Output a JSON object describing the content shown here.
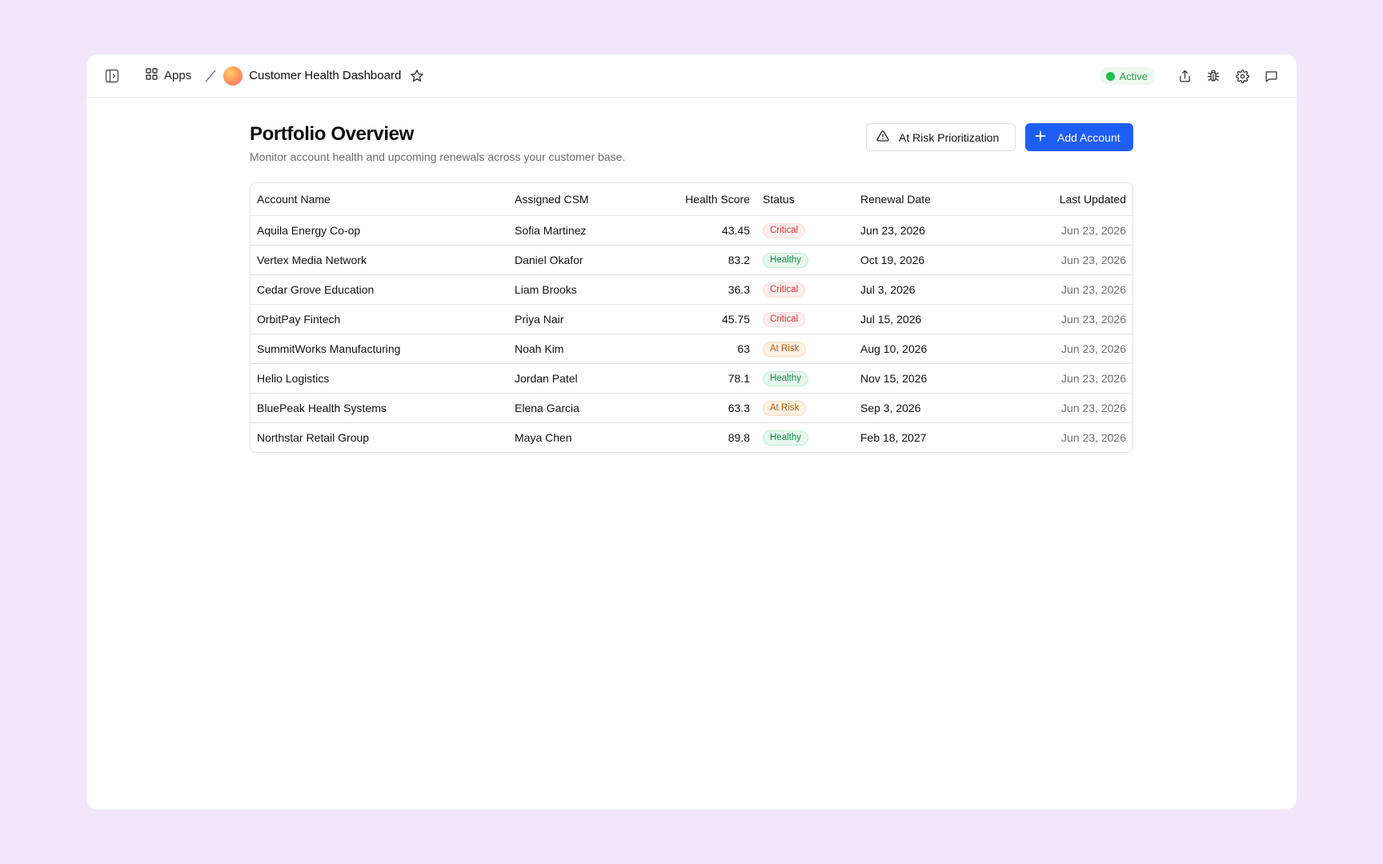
{
  "topbar": {
    "apps_label": "Apps",
    "app_title": "Customer Health Dashboard",
    "status_label": "Active",
    "status_color": "#1fbf4d",
    "icons": [
      "sidebar-toggle-icon",
      "apps-grid-icon",
      "star-icon",
      "share-icon",
      "bug-icon",
      "gear-icon",
      "chat-icon"
    ]
  },
  "page": {
    "title": "Portfolio Overview",
    "subtitle": "Monitor account health and upcoming renewals across your customer base."
  },
  "actions": {
    "at_risk_label": "At Risk Prioritization",
    "add_account_label": "Add Account",
    "accent_color": "#1f5ef5"
  },
  "table": {
    "headers": {
      "account": "Account Name",
      "csm": "Assigned CSM",
      "score": "Health Score",
      "status": "Status",
      "renewal": "Renewal Date",
      "updated": "Last Updated"
    },
    "rows": [
      {
        "account": "Aquila Energy Co-op",
        "csm": "Sofia Martinez",
        "score": "43.45",
        "status": "Critical",
        "renewal": "Jun 23, 2026",
        "updated": "Jun 23, 2026"
      },
      {
        "account": "Vertex Media Network",
        "csm": "Daniel Okafor",
        "score": "83.2",
        "status": "Healthy",
        "renewal": "Oct 19, 2026",
        "updated": "Jun 23, 2026"
      },
      {
        "account": "Cedar Grove Education",
        "csm": "Liam Brooks",
        "score": "36.3",
        "status": "Critical",
        "renewal": "Jul 3, 2026",
        "updated": "Jun 23, 2026"
      },
      {
        "account": "OrbitPay Fintech",
        "csm": "Priya Nair",
        "score": "45.75",
        "status": "Critical",
        "renewal": "Jul 15, 2026",
        "updated": "Jun 23, 2026"
      },
      {
        "account": "SummitWorks Manufacturing",
        "csm": "Noah Kim",
        "score": "63",
        "status": "At Risk",
        "renewal": "Aug 10, 2026",
        "updated": "Jun 23, 2026"
      },
      {
        "account": "Helio Logistics",
        "csm": "Jordan Patel",
        "score": "78.1",
        "status": "Healthy",
        "renewal": "Nov 15, 2026",
        "updated": "Jun 23, 2026"
      },
      {
        "account": "BluePeak Health Systems",
        "csm": "Elena Garcia",
        "score": "63.3",
        "status": "At Risk",
        "renewal": "Sep 3, 2026",
        "updated": "Jun 23, 2026"
      },
      {
        "account": "Northstar Retail Group",
        "csm": "Maya Chen",
        "score": "89.8",
        "status": "Healthy",
        "renewal": "Feb 18, 2027",
        "updated": "Jun 23, 2026"
      }
    ]
  }
}
